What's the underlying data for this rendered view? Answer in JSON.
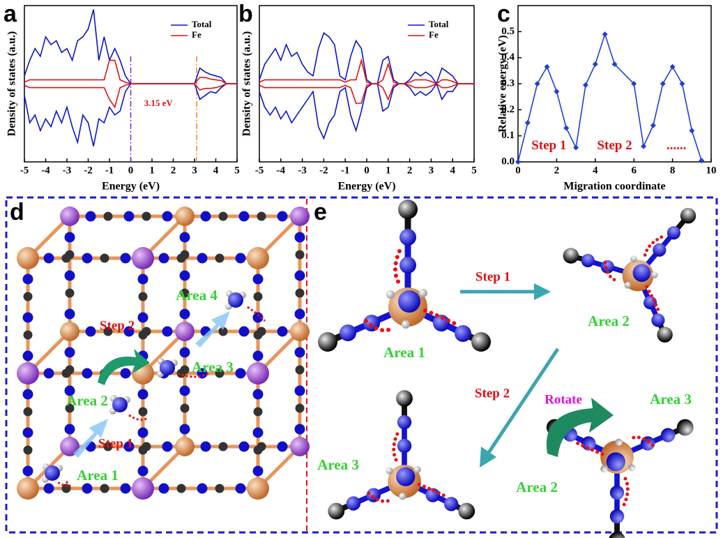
{
  "chart_data": [
    {
      "type": "line",
      "label": "a",
      "xlabel": "Energy (eV)",
      "ylabel": "Density of states (a.u.)",
      "x": [
        -5,
        -4.75,
        -4.5,
        -4.25,
        -4,
        -3.75,
        -3.5,
        -3.25,
        -3,
        -2.75,
        -2.5,
        -2.25,
        -2,
        -1.75,
        -1.5,
        -1.25,
        -1,
        -0.75,
        -0.5,
        -0.25,
        0,
        0.25,
        0.5,
        0.75,
        1,
        1.25,
        1.5,
        1.75,
        2,
        2.25,
        2.5,
        2.75,
        3,
        3.25,
        3.5,
        3.75,
        4,
        4.25,
        4.5,
        4.75,
        5
      ],
      "series": [
        {
          "name": "Total",
          "color": "#0a14c8",
          "values": [
            0.1,
            0.3,
            0.45,
            0.35,
            0.6,
            0.5,
            0.55,
            0.4,
            0.45,
            0.3,
            0.55,
            0.6,
            0.7,
            0.95,
            0.3,
            0.6,
            0.3,
            0.45,
            0.3,
            0.1,
            0,
            0,
            0,
            0,
            0,
            0,
            0,
            0,
            0,
            0,
            0,
            0,
            0,
            0.2,
            0.15,
            0.12,
            0.1,
            0.08,
            0,
            0,
            0
          ],
          "values_down": [
            -0.15,
            -0.5,
            -0.4,
            -0.6,
            -0.45,
            -0.55,
            -0.35,
            -0.5,
            -0.3,
            -0.55,
            -0.75,
            -0.4,
            -0.5,
            -0.8,
            -0.45,
            -0.5,
            -0.3,
            -0.4,
            -0.35,
            -0.1,
            0,
            0,
            0,
            0,
            0,
            0,
            0,
            0,
            0,
            0,
            0,
            0,
            0,
            -0.2,
            -0.15,
            -0.1,
            -0.12,
            -0.05,
            0,
            0,
            0
          ]
        },
        {
          "name": "Fe",
          "color": "#e01010",
          "values": [
            0.02,
            0.05,
            0.05,
            0.05,
            0.05,
            0.05,
            0.05,
            0.05,
            0.05,
            0.05,
            0.05,
            0.05,
            0.05,
            0.05,
            0.05,
            0.05,
            0.3,
            0.3,
            0.05,
            0.02,
            0,
            0,
            0,
            0,
            0,
            0,
            0,
            0,
            0,
            0,
            0,
            0,
            0,
            0.08,
            0.08,
            0.06,
            0.05,
            0.04,
            0,
            0,
            0
          ],
          "values_down": [
            -0.02,
            -0.05,
            -0.05,
            -0.05,
            -0.05,
            -0.05,
            -0.05,
            -0.05,
            -0.05,
            -0.05,
            -0.05,
            -0.05,
            -0.05,
            -0.05,
            -0.05,
            -0.05,
            -0.2,
            -0.3,
            -0.05,
            -0.02,
            0,
            0,
            0,
            0,
            0,
            0,
            0,
            0,
            0,
            0,
            0,
            0,
            0,
            -0.08,
            -0.06,
            -0.06,
            -0.05,
            -0.03,
            0,
            0,
            0
          ]
        }
      ],
      "xlim": [
        -5,
        5
      ],
      "xticks": [
        -5,
        -4,
        -3,
        -2,
        -1,
        0,
        1,
        2,
        3,
        4,
        5
      ],
      "ylim": [
        -1,
        1
      ],
      "legend": "upper right",
      "vlines": [
        {
          "x": 0,
          "color": "#7a22d8"
        },
        {
          "x": 3.1,
          "color": "#f0821e"
        }
      ],
      "annotation": "3.15 eV"
    },
    {
      "type": "line",
      "label": "b",
      "xlabel": "Energy (eV)",
      "ylabel": "Density of states (a.u.)",
      "x": [
        -5,
        -4.75,
        -4.5,
        -4.25,
        -4,
        -3.75,
        -3.5,
        -3.25,
        -3,
        -2.75,
        -2.5,
        -2.25,
        -2,
        -1.75,
        -1.5,
        -1.25,
        -1,
        -0.75,
        -0.5,
        -0.25,
        0,
        0.25,
        0.5,
        0.75,
        1,
        1.25,
        1.5,
        1.75,
        2,
        2.25,
        2.5,
        2.75,
        3,
        3.25,
        3.5,
        3.75,
        4,
        4.25,
        4.5,
        4.75,
        5
      ],
      "series": [
        {
          "name": "Total",
          "color": "#0a14c8",
          "values": [
            0.05,
            0.25,
            0.35,
            0.45,
            0.3,
            0.5,
            0.35,
            0.4,
            0.25,
            0.15,
            0.1,
            0.45,
            0.65,
            0.6,
            0.5,
            0.1,
            0.05,
            0.35,
            0.55,
            0.45,
            0.05,
            0,
            0,
            0.3,
            0.35,
            0.05,
            0,
            0,
            0.05,
            0.15,
            0.1,
            0.15,
            0.1,
            0,
            0.2,
            0.15,
            0.1,
            0,
            0,
            0,
            0
          ],
          "values_down": [
            -0.1,
            -0.3,
            -0.4,
            -0.3,
            -0.45,
            -0.35,
            -0.5,
            -0.4,
            -0.3,
            -0.2,
            -0.1,
            -0.55,
            -0.7,
            -0.5,
            -0.4,
            -0.1,
            -0.05,
            -0.4,
            -0.6,
            -0.35,
            -0.05,
            0,
            0,
            -0.35,
            -0.3,
            -0.05,
            0,
            0,
            -0.05,
            -0.15,
            -0.1,
            -0.15,
            -0.1,
            0,
            -0.2,
            -0.1,
            -0.1,
            0,
            0,
            0,
            0
          ]
        },
        {
          "name": "Fe",
          "color": "#e01010",
          "values": [
            0.02,
            0.05,
            0.05,
            0.05,
            0.05,
            0.05,
            0.05,
            0.05,
            0.05,
            0.05,
            0.05,
            0.05,
            0.05,
            0.05,
            0.05,
            0.05,
            0.02,
            0.05,
            0.05,
            0.3,
            0.02,
            0,
            0,
            0.05,
            0.25,
            0.02,
            0,
            0,
            0.02,
            0.05,
            0.05,
            0.05,
            0.03,
            0,
            0.05,
            0.05,
            0.03,
            0,
            0,
            0,
            0
          ],
          "values_down": [
            -0.02,
            -0.05,
            -0.05,
            -0.05,
            -0.05,
            -0.05,
            -0.05,
            -0.05,
            -0.05,
            -0.05,
            -0.05,
            -0.05,
            -0.05,
            -0.05,
            -0.05,
            -0.05,
            -0.02,
            -0.05,
            -0.25,
            -0.25,
            -0.02,
            0,
            0,
            -0.05,
            -0.2,
            -0.02,
            0,
            0,
            -0.02,
            -0.05,
            -0.05,
            -0.05,
            -0.03,
            0,
            -0.05,
            -0.05,
            -0.03,
            0,
            0,
            0,
            0
          ]
        }
      ],
      "xlim": [
        -5,
        5
      ],
      "xticks": [
        -5,
        -4,
        -3,
        -2,
        -1,
        0,
        1,
        2,
        3,
        4,
        5
      ],
      "ylim": [
        -1,
        1
      ],
      "legend": "upper right"
    },
    {
      "type": "line",
      "label": "c",
      "xlabel": "Migration coordinate",
      "ylabel": "Relative energy (eV)",
      "x": [
        0,
        0.5,
        1,
        1.5,
        2,
        2.5,
        3,
        3.5,
        4,
        4.5,
        5,
        6,
        6.5,
        7,
        7.5,
        8,
        8.5,
        9,
        9.5
      ],
      "series": [
        {
          "color": "#1f3fd8",
          "values": [
            0,
            0.15,
            0.3,
            0.365,
            0.27,
            0.13,
            0.055,
            0.295,
            0.375,
            0.49,
            0.375,
            0.3,
            0.06,
            0.14,
            0.3,
            0.365,
            0.3,
            0.12,
            0.005
          ]
        }
      ],
      "markers": "diamond",
      "xlim": [
        0,
        10
      ],
      "xticks": [
        0,
        2,
        4,
        6,
        8,
        10
      ],
      "ylim": [
        0,
        0.6
      ],
      "yticks": [
        {
          "value": 0,
          "label": "0.0"
        },
        0.1,
        0.2,
        0.3,
        0.4,
        0.5
      ],
      "annotations": [
        "Step 1",
        "Step 2",
        "......"
      ]
    }
  ],
  "panel_d": {
    "label": "d",
    "areas": [
      "Area 1",
      "Area 2",
      "Area 3",
      "Area 4"
    ],
    "steps": [
      "Step 1",
      "Step 2"
    ]
  },
  "panel_e": {
    "label": "e",
    "steps": [
      "Step 1",
      "Step 2"
    ],
    "rotate": "Rotate",
    "areas": [
      "Area 1",
      "Area 2",
      "Area 3",
      "Area 3",
      "Area 2"
    ]
  }
}
